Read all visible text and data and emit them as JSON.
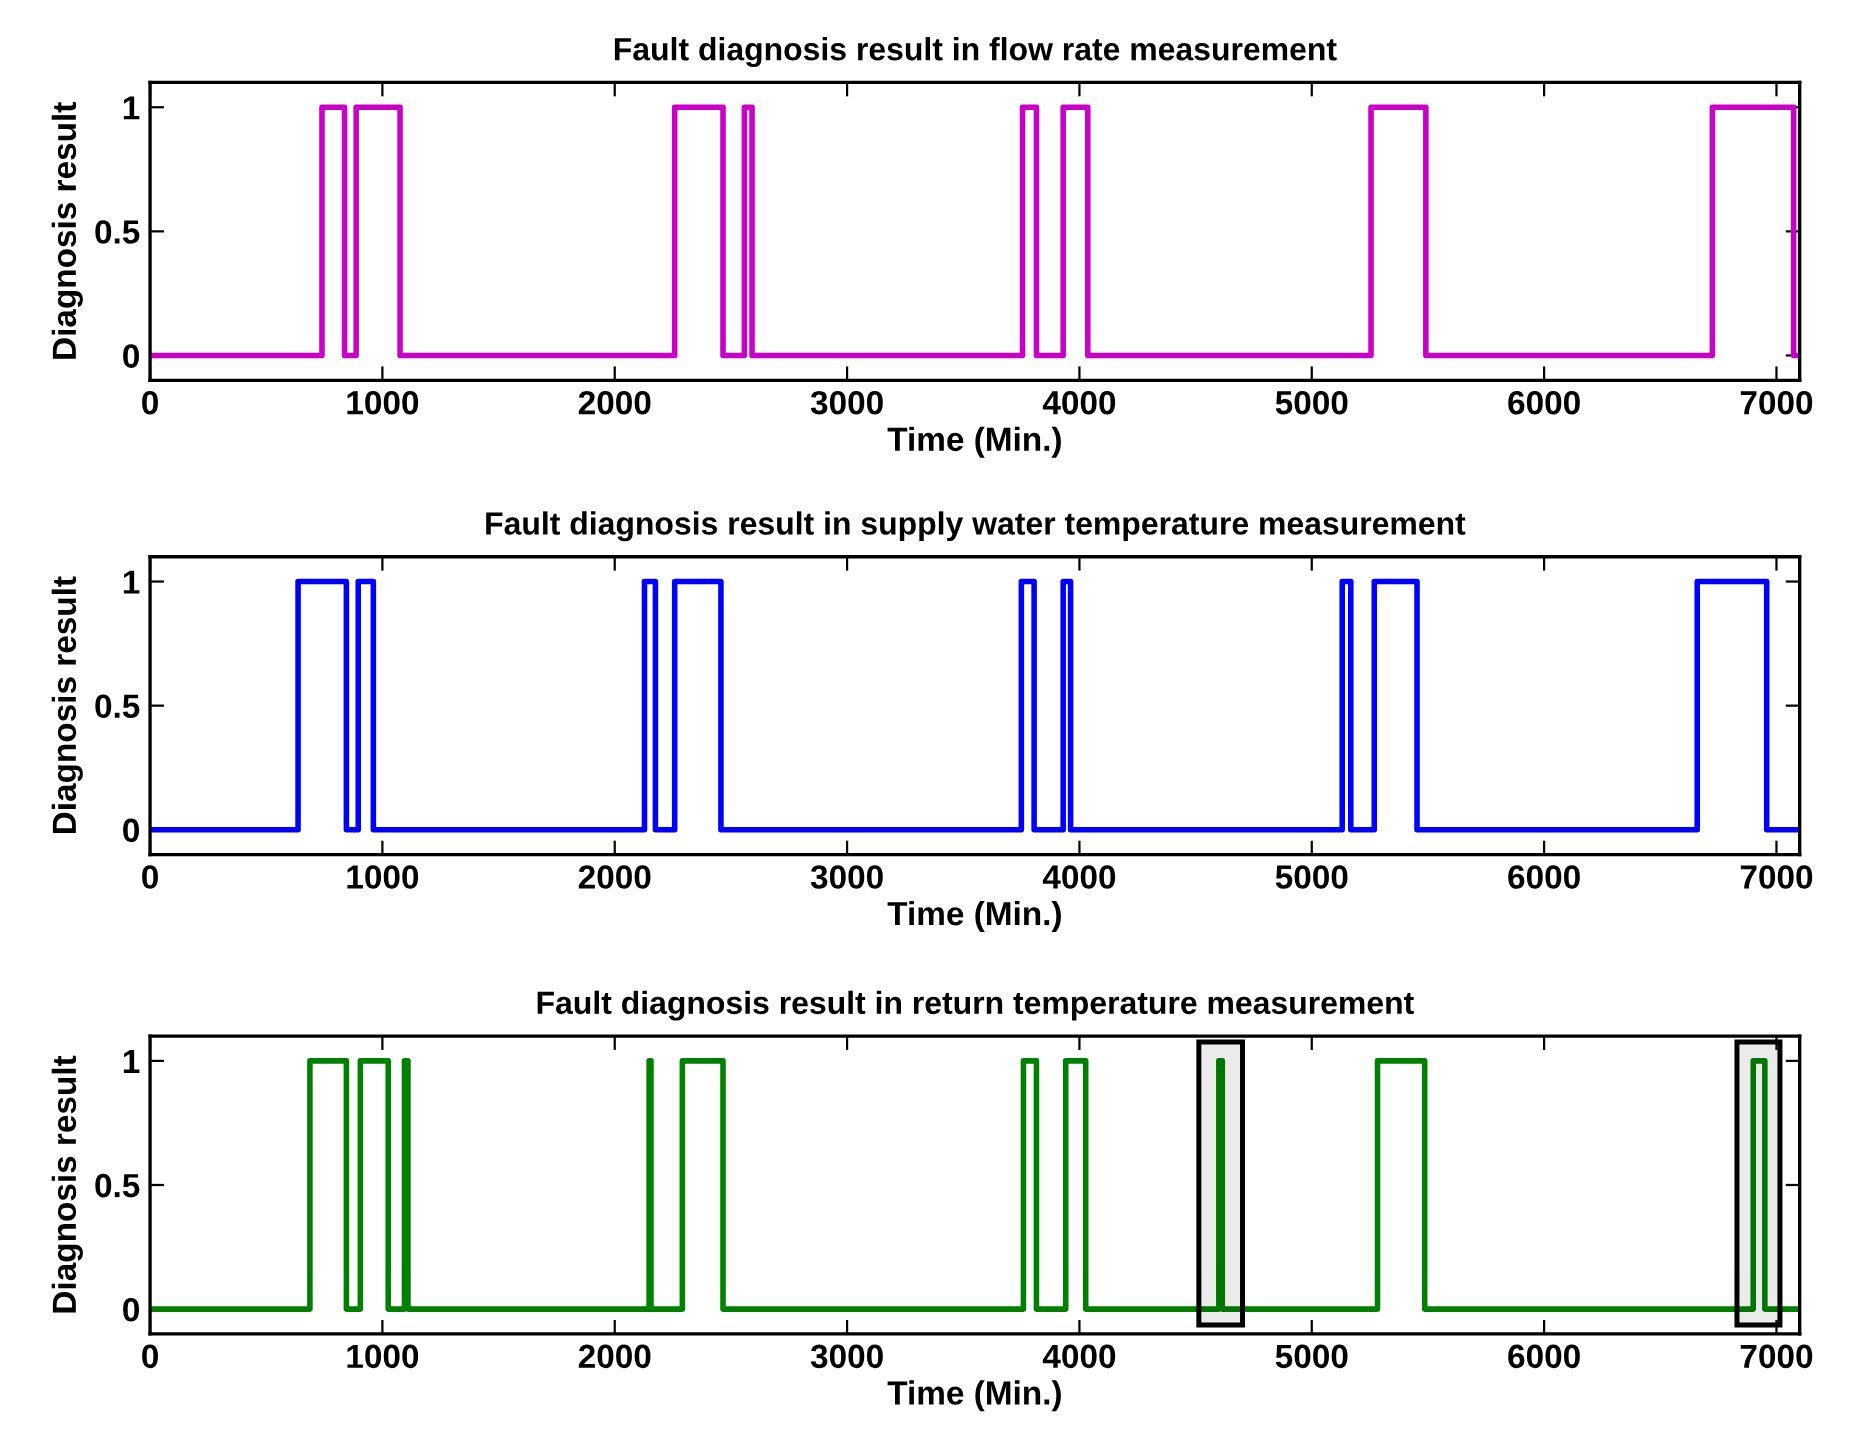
{
  "chart_data": [
    {
      "type": "line",
      "title": "Fault diagnosis result in flow rate measurement",
      "xlabel": "Time (Min.)",
      "ylabel": "Diagnosis result",
      "xlim": [
        0,
        7100
      ],
      "xticks": [
        0,
        1000,
        2000,
        3000,
        4000,
        5000,
        6000,
        7000
      ],
      "ylim": [
        -0.1,
        1.1
      ],
      "yticks": [
        0,
        0.5,
        1
      ],
      "grid": false,
      "legend": false,
      "series": [
        {
          "color": "#c800c8",
          "x": [
            0,
            740,
            740,
            837,
            837,
            887,
            887,
            1076,
            1076,
            2258,
            2258,
            2466,
            2466,
            2558,
            2558,
            2591,
            2591,
            3755,
            3755,
            3815,
            3815,
            3930,
            3930,
            4036,
            4036,
            5255,
            5255,
            5491,
            5491,
            6724,
            6724,
            7074,
            7074,
            7100
          ],
          "values": [
            0,
            0,
            1,
            1,
            0,
            0,
            1,
            1,
            0,
            0,
            1,
            1,
            0,
            0,
            1,
            1,
            0,
            0,
            1,
            1,
            0,
            0,
            1,
            1,
            0,
            0,
            1,
            1,
            0,
            0,
            1,
            1,
            0,
            0
          ]
        }
      ]
    },
    {
      "type": "line",
      "title": "Fault diagnosis result in supply water temperature measurement",
      "xlabel": "Time (Min.)",
      "ylabel": "Diagnosis result",
      "xlim": [
        0,
        7100
      ],
      "xticks": [
        0,
        1000,
        2000,
        3000,
        4000,
        5000,
        6000,
        7000
      ],
      "ylim": [
        -0.1,
        1.1
      ],
      "yticks": [
        0,
        0.5,
        1
      ],
      "grid": false,
      "legend": false,
      "series": [
        {
          "color": "#0000ff",
          "x": [
            0,
            637,
            637,
            845,
            845,
            896,
            896,
            961,
            961,
            2128,
            2128,
            2175,
            2175,
            2258,
            2258,
            2457,
            2457,
            3750,
            3750,
            3805,
            3805,
            3930,
            3930,
            3962,
            3962,
            5131,
            5131,
            5168,
            5168,
            5269,
            5269,
            5453,
            5453,
            6659,
            6659,
            6958,
            6958,
            7100
          ],
          "values": [
            0,
            0,
            1,
            1,
            0,
            0,
            1,
            1,
            0,
            0,
            1,
            1,
            0,
            0,
            1,
            1,
            0,
            0,
            1,
            1,
            0,
            0,
            1,
            1,
            0,
            0,
            1,
            1,
            0,
            0,
            1,
            1,
            0,
            0,
            1,
            1,
            0,
            0
          ]
        }
      ]
    },
    {
      "type": "line",
      "title": "Fault diagnosis result in return temperature measurement",
      "xlabel": "Time (Min.)",
      "ylabel": "Diagnosis result",
      "xlim": [
        0,
        7100
      ],
      "xticks": [
        0,
        1000,
        2000,
        3000,
        4000,
        5000,
        6000,
        7000
      ],
      "ylim": [
        -0.1,
        1.1
      ],
      "yticks": [
        0,
        0.5,
        1
      ],
      "grid": false,
      "legend": false,
      "series": [
        {
          "color": "#008000",
          "x": [
            0,
            688,
            688,
            845,
            845,
            905,
            905,
            1025,
            1025,
            1095,
            1095,
            1110,
            1110,
            2148,
            2148,
            2156,
            2156,
            2291,
            2291,
            2466,
            2466,
            3759,
            3759,
            3815,
            3815,
            3941,
            3941,
            4027,
            4027,
            4600,
            4600,
            4615,
            4615,
            5283,
            5283,
            5486,
            5486,
            6900,
            6900,
            6950,
            6950,
            7100
          ],
          "values": [
            0,
            0,
            1,
            1,
            0,
            0,
            1,
            1,
            0,
            0,
            1,
            1,
            0,
            0,
            1,
            1,
            0,
            0,
            1,
            1,
            0,
            0,
            1,
            1,
            0,
            0,
            1,
            1,
            0,
            0,
            1,
            1,
            0,
            0,
            1,
            1,
            0,
            0,
            1,
            1,
            0,
            0
          ]
        }
      ],
      "bands": [
        {
          "axis": "x",
          "from": 4514,
          "to": 4702,
          "color": "#000000"
        },
        {
          "axis": "x",
          "from": 6830,
          "to": 7015,
          "color": "#000000"
        }
      ]
    }
  ]
}
